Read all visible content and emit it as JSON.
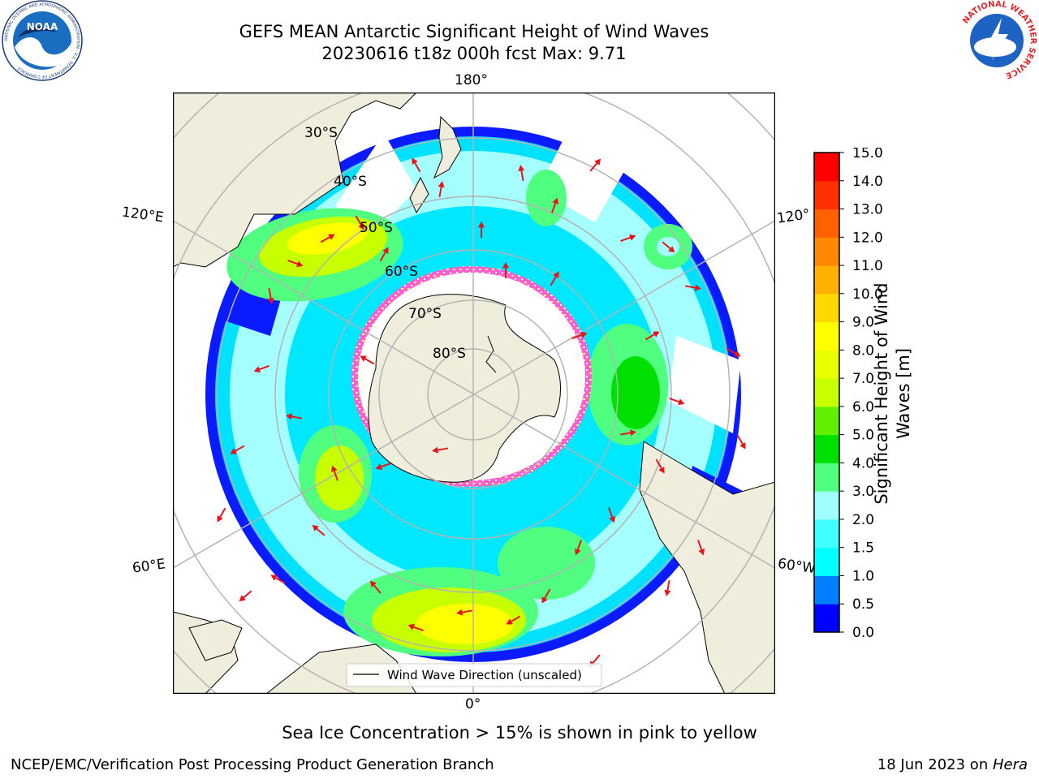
{
  "header": {
    "title_line1": "GEFS MEAN Antarctic Significant Height of Wind Waves",
    "title_line2": "20230616 t18z 000h fcst   Max: 9.71",
    "noaa_logo_text": "NOAA",
    "noaa_ring_text": "NATIONAL OCEANIC AND ATMOSPHERIC ADMINISTRATION · U.S. DEPARTMENT OF COMMERCE",
    "nws_ring_text": "NATIONAL WEATHER SERVICE"
  },
  "map": {
    "projection": "south-polar-stereographic",
    "longitude_labels": {
      "top": "180°",
      "bottom": "0°",
      "upper_left": "120°E",
      "lower_left": "60°E",
      "upper_right": "120°",
      "lower_right": "60°W"
    },
    "latitude_labels": [
      "30°S",
      "40°S",
      "50°S",
      "60°S",
      "70°S",
      "80°S"
    ],
    "legend_label": "Wind Wave Direction (unscaled)",
    "colors": {
      "land": "#efeedd",
      "ocean_blank": "#ffffff",
      "arrow": "#e8141a",
      "ice_pink": "#ff5ecf",
      "ice_yellow": "#f7f28a",
      "grid": "#b3b3b3"
    }
  },
  "colorbar": {
    "label_line1": "Significant Height of Wind",
    "label_line2": "Waves [m]",
    "ticks": [
      "0.0",
      "0.5",
      "1.0",
      "1.5",
      "2.0",
      "3.0",
      "4.0",
      "5.0",
      "6.0",
      "7.0",
      "8.0",
      "9.0",
      "10.0",
      "11.0",
      "12.0",
      "13.0",
      "14.0",
      "15.0"
    ],
    "colors": [
      "#0000ff",
      "#0080ff",
      "#00ffff",
      "#40ffff",
      "#a0ffff",
      "#50ff80",
      "#00e000",
      "#60f000",
      "#c8ff00",
      "#e8ff00",
      "#ffff00",
      "#ffd800",
      "#ffb000",
      "#ff8800",
      "#ff6000",
      "#ff3000",
      "#ff0000"
    ]
  },
  "footer": {
    "note": "Sea Ice Concentration > 15% is shown in pink to yellow",
    "left": "NCEP/EMC/Verification Post Processing Product Generation Branch",
    "right_date": "18 Jun 2023 on ",
    "right_machine": "Hera"
  }
}
